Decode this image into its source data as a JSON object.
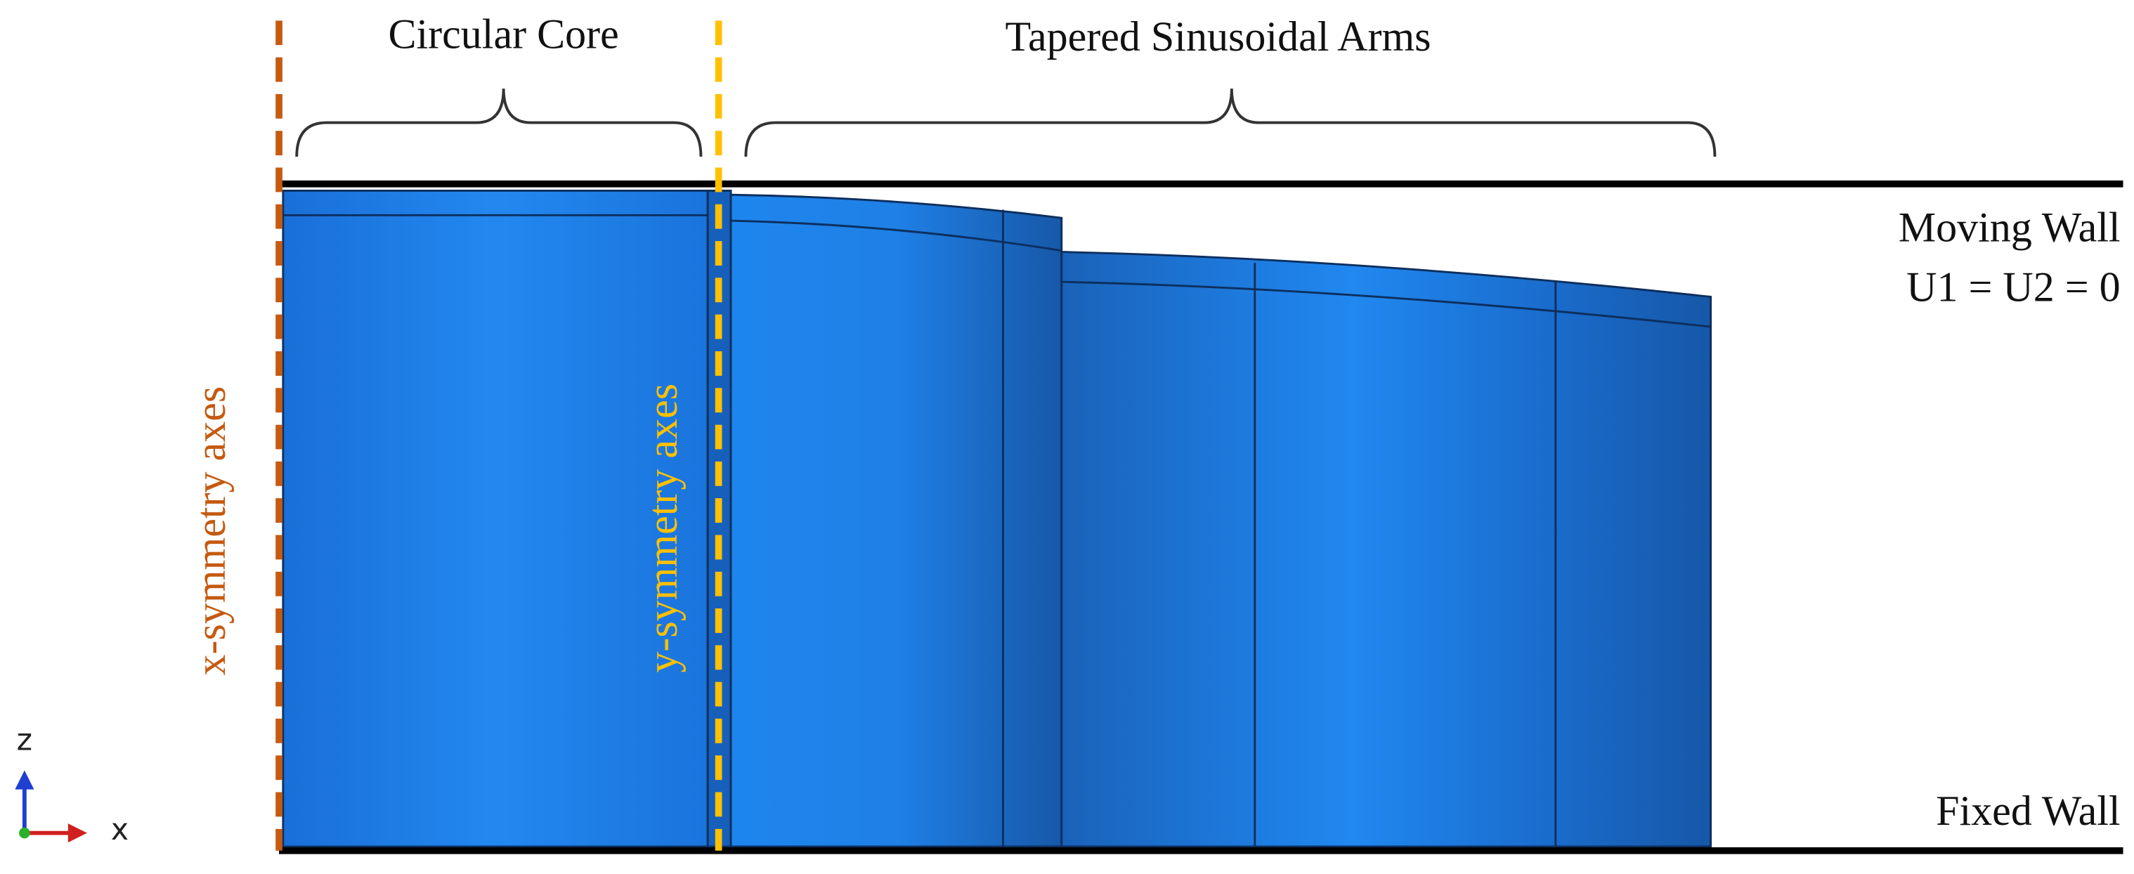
{
  "labels": {
    "core": "Circular Core",
    "arms": "Tapered Sinusoidal Arms",
    "moving_wall": "Moving Wall",
    "moving_wall_bc": "U1 = U2 = 0",
    "fixed_wall": "Fixed Wall",
    "x_symmetry": "x-symmetry axes",
    "y_symmetry": "y-symmetry axes"
  },
  "triad": {
    "z": "z",
    "x": "x"
  }
}
